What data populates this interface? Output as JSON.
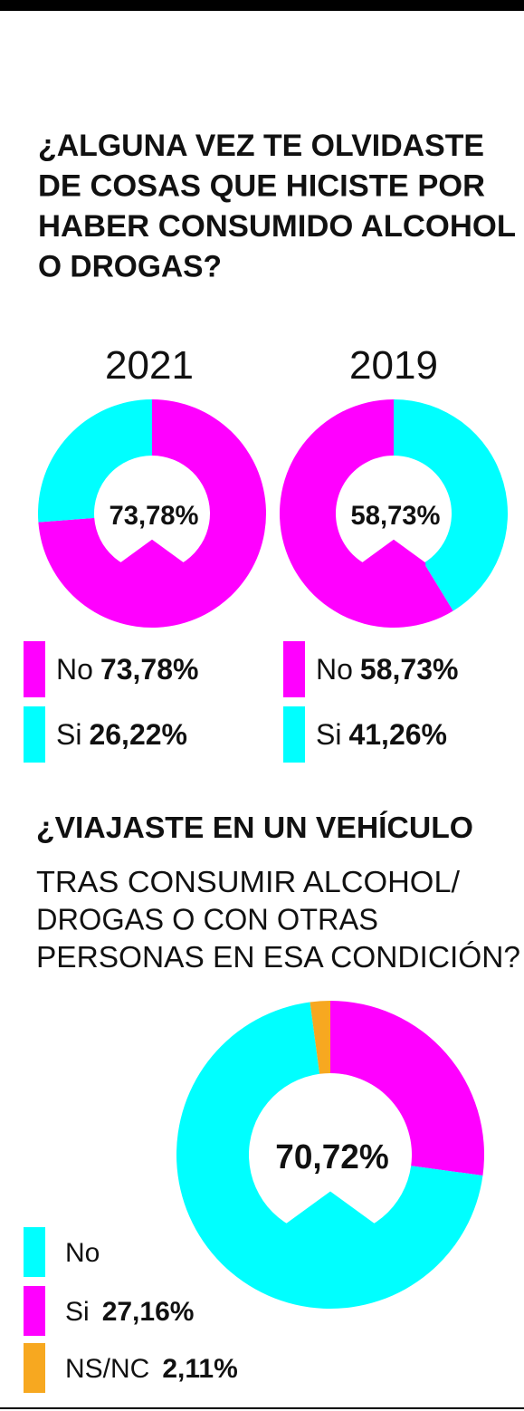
{
  "chart_data": [
    {
      "type": "donut",
      "title": [
        "¿ALGUNA VEZ TE OLVIDASTE",
        "DE COSAS QUE HICISTE POR",
        "HABER CONSUMIDO ALCOHOL",
        "O DROGAS?"
      ],
      "subtitle": "2021",
      "categories": [
        "No",
        "Si"
      ],
      "values": [
        73.78,
        26.22
      ],
      "value_labels": [
        "73,78%",
        "26,22%"
      ],
      "colors": [
        "#ff00ff",
        "#00ffff"
      ]
    },
    {
      "type": "donut",
      "subtitle": "2019",
      "categories": [
        "No",
        "Si"
      ],
      "values": [
        58.73,
        41.26
      ],
      "value_labels": [
        "58,73%",
        "41,26%"
      ],
      "colors": [
        "#ff00ff",
        "#00ffff"
      ]
    },
    {
      "type": "donut",
      "title": [
        "¿VIAJASTE EN UN VEHÍCULO"
      ],
      "subtitle": [
        "TRAS CONSUMIR ALCOHOL/",
        "DROGAS O CON OTRAS",
        "PERSONAS EN ESA CONDICIÓN?"
      ],
      "categories": [
        "No",
        "Si",
        "NS/NC"
      ],
      "values": [
        70.72,
        27.16,
        2.11
      ],
      "value_labels": [
        "70,72%",
        "27,16%",
        "2,11%"
      ],
      "colors": [
        "#00ffff",
        "#ff00ff",
        "#f7a820"
      ]
    }
  ]
}
